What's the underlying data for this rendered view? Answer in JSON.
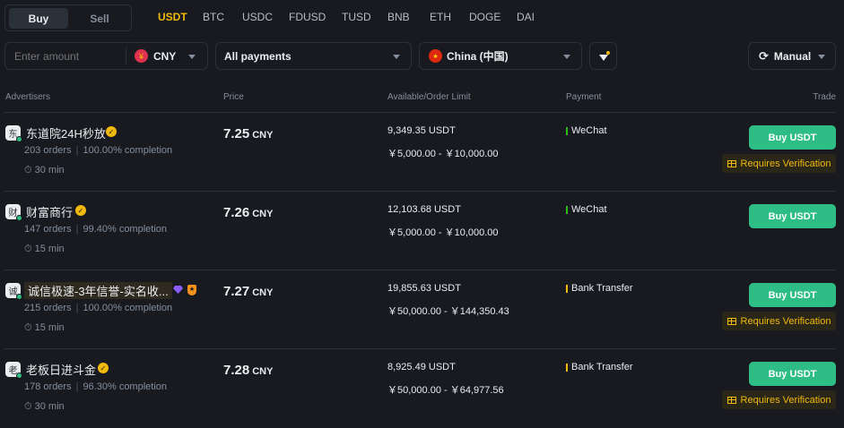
{
  "tabs": {
    "buy": "Buy",
    "sell": "Sell"
  },
  "coins": [
    "USDT",
    "BTC",
    "USDC",
    "FDUSD",
    "TUSD",
    "BNB",
    "ETH",
    "DOGE",
    "DAI"
  ],
  "filters": {
    "amount_placeholder": "Enter amount",
    "currency": "CNY",
    "payments": "All payments",
    "region": "China (中国)",
    "refresh": "Manual"
  },
  "headers": {
    "advertisers": "Advertisers",
    "price": "Price",
    "available": "Available/Order Limit",
    "payment": "Payment",
    "trade": "Trade"
  },
  "colors": {
    "accent": "#f0b90b",
    "buy": "#2ebd85",
    "wechat": "#2dbd1a",
    "bank": "#f0b90b"
  },
  "rows": [
    {
      "initial": "东",
      "name": "东道院24H秒放",
      "orders": "203 orders",
      "completion": "100.00% completion",
      "time": "30 min",
      "price": "7.25",
      "currency": "CNY",
      "available": "9,349.35 USDT",
      "limit": "￥5,000.00 - ￥10,000.00",
      "payment": "WeChat",
      "button": "Buy USDT",
      "verification": "Requires Verification"
    },
    {
      "initial": "财",
      "name": "财富商行",
      "orders": "147 orders",
      "completion": "99.40% completion",
      "time": "15 min",
      "price": "7.26",
      "currency": "CNY",
      "available": "12,103.68 USDT",
      "limit": "￥5,000.00 - ￥10,000.00",
      "payment": "WeChat",
      "button": "Buy USDT"
    },
    {
      "initial": "诚",
      "name": "诚信极速-3年信誉-实名收...",
      "orders": "215 orders",
      "completion": "100.00% completion",
      "time": "15 min",
      "price": "7.27",
      "currency": "CNY",
      "available": "19,855.63 USDT",
      "limit": "￥50,000.00 - ￥144,350.43",
      "payment": "Bank Transfer",
      "button": "Buy USDT",
      "verification": "Requires Verification"
    },
    {
      "initial": "老",
      "name": "老板日进斗金",
      "orders": "178 orders",
      "completion": "96.30% completion",
      "time": "30 min",
      "price": "7.28",
      "currency": "CNY",
      "available": "8,925.49 USDT",
      "limit": "￥50,000.00 - ￥64,977.56",
      "payment": "Bank Transfer",
      "button": "Buy USDT",
      "verification": "Requires Verification"
    }
  ]
}
